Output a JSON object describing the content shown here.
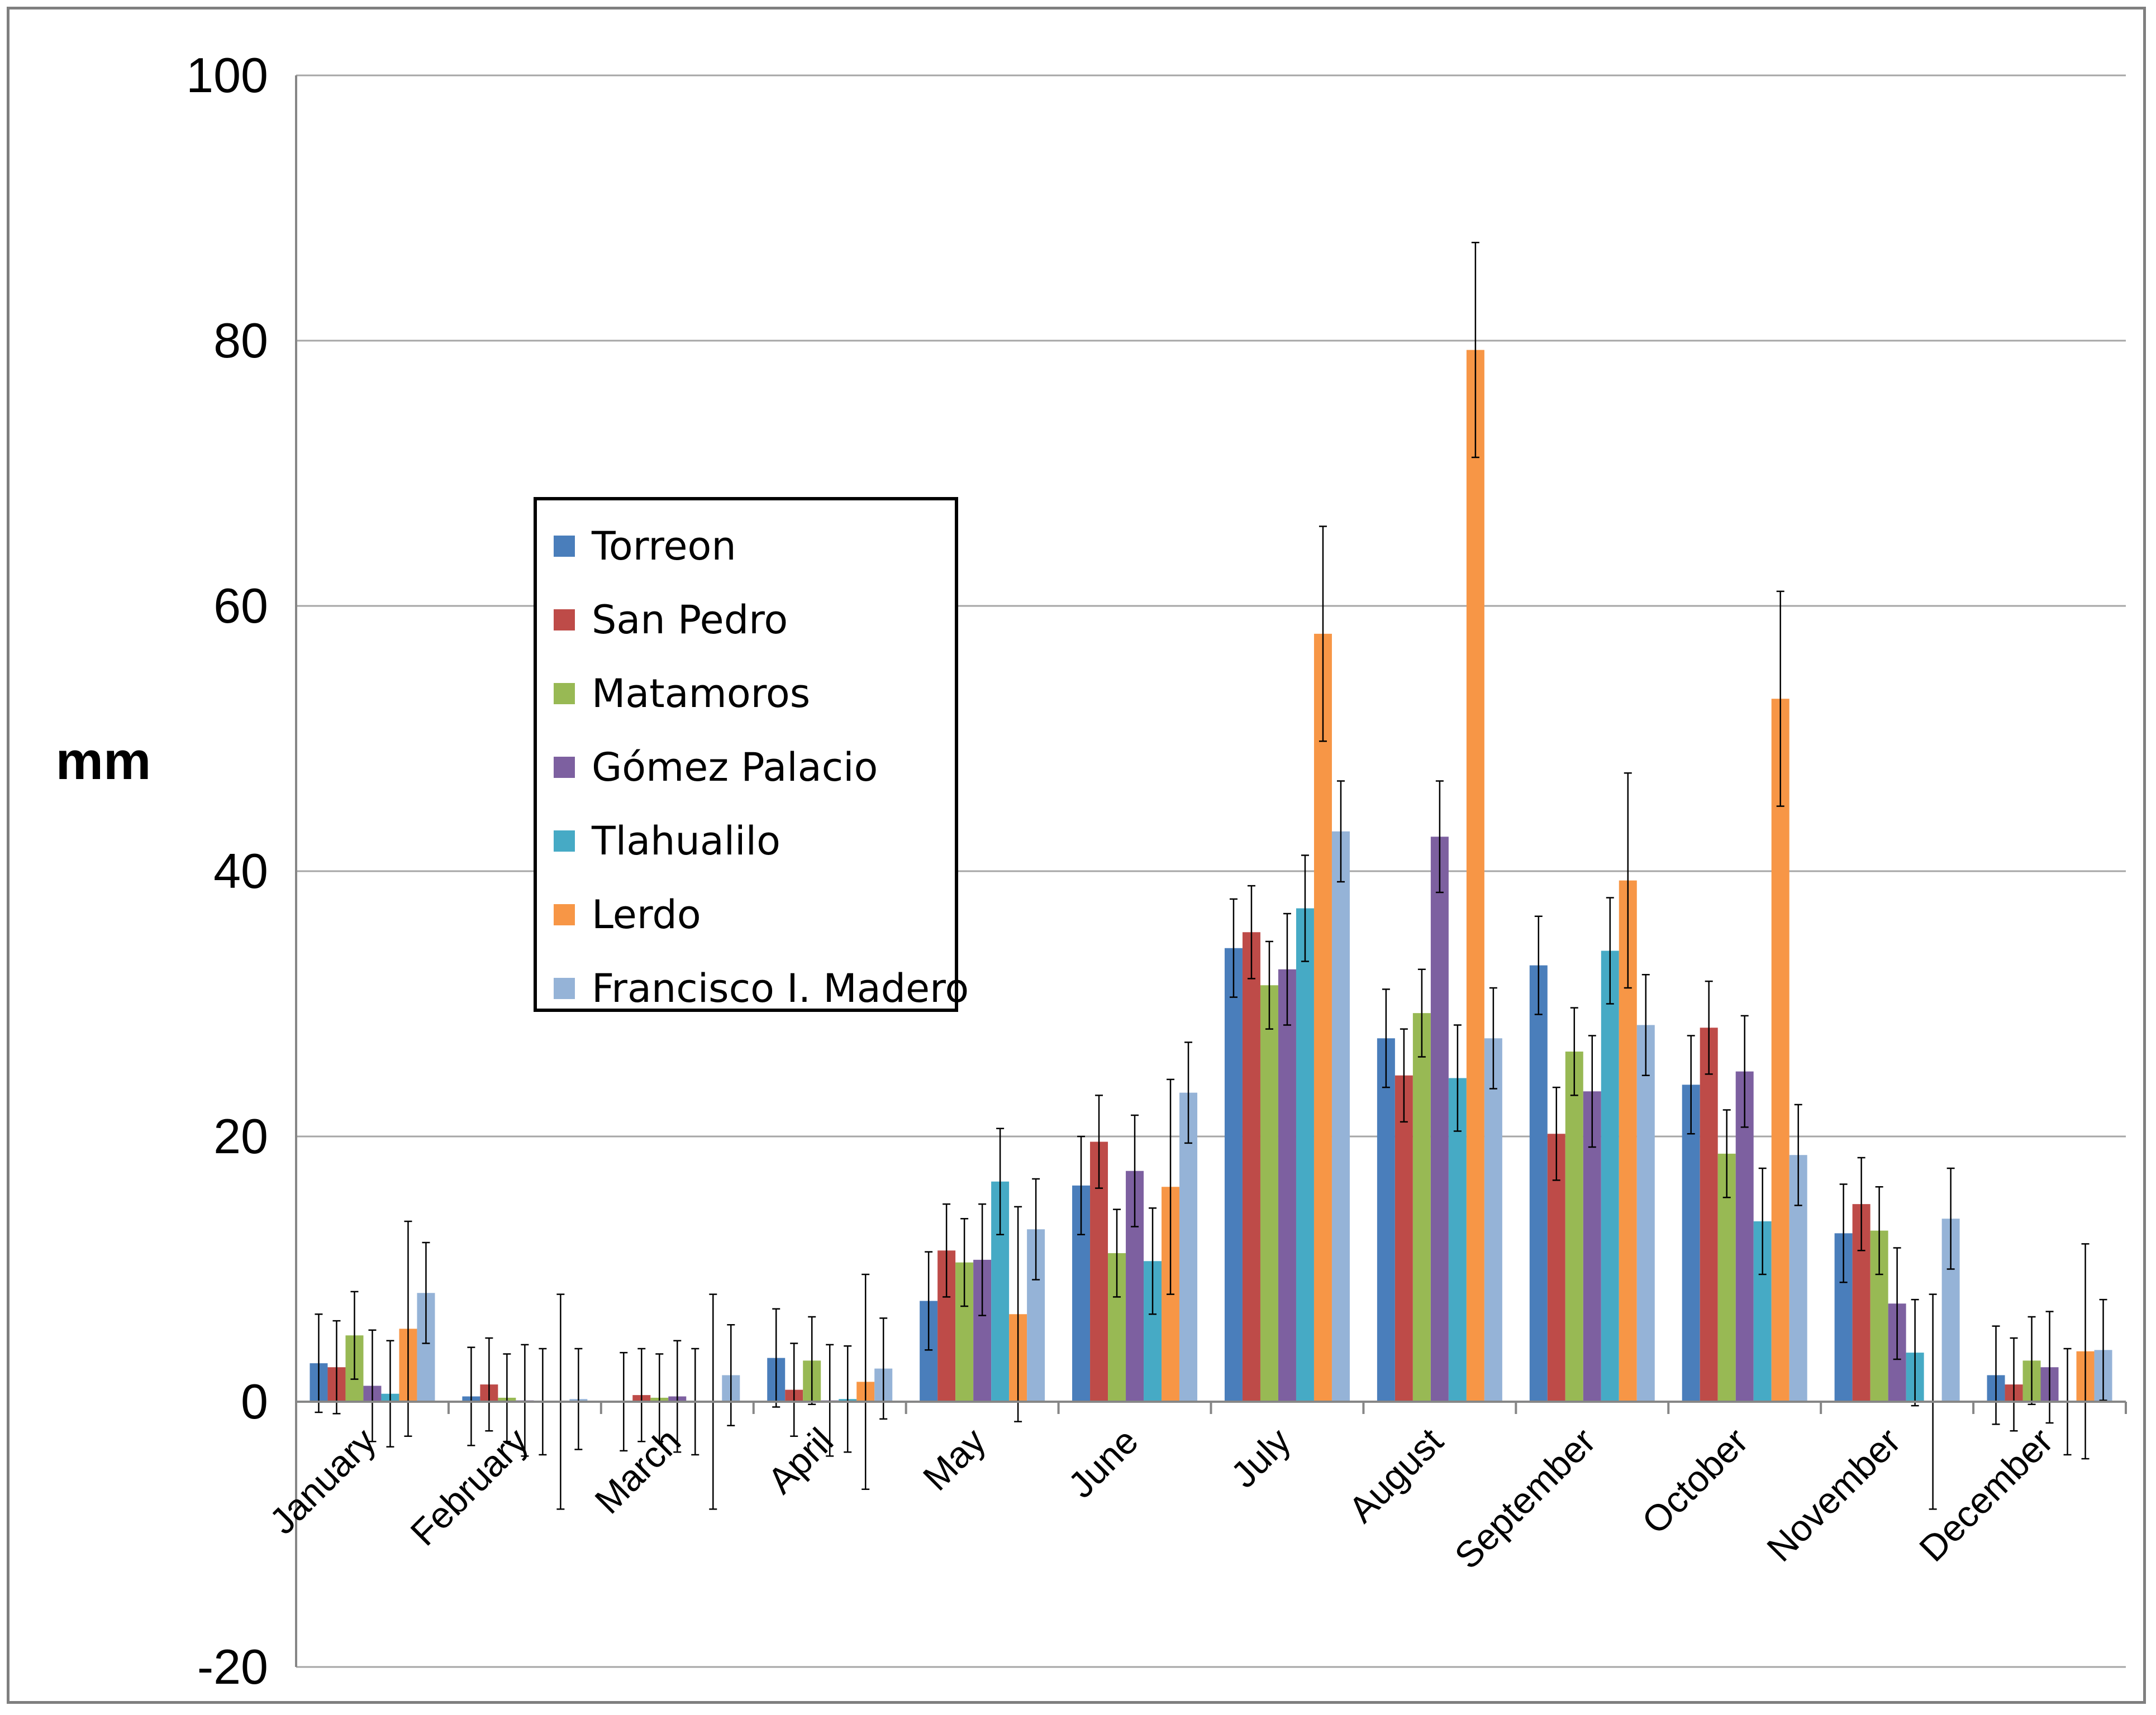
{
  "chart_data": {
    "type": "bar",
    "title": "",
    "xlabel": "",
    "ylabel": "mm",
    "ylim": [
      -20,
      100
    ],
    "yticks": [
      -20,
      0,
      20,
      40,
      60,
      80,
      100
    ],
    "grid": true,
    "legend_position": "left-center",
    "categories": [
      "January",
      "February",
      "March",
      "April",
      "May",
      "June",
      "July",
      "August",
      "September",
      "October",
      "November",
      "December"
    ],
    "series": [
      {
        "name": "Torreon",
        "color": "#4a7ebb",
        "values": [
          2.9,
          0.4,
          0.0,
          3.3,
          7.6,
          16.3,
          34.2,
          27.4,
          32.9,
          23.9,
          12.7,
          2.0
        ],
        "errors": [
          3.7,
          3.7,
          3.7,
          3.7,
          3.7,
          3.7,
          3.7,
          3.7,
          3.7,
          3.7,
          3.7,
          3.7
        ]
      },
      {
        "name": "San Pedro",
        "color": "#be4b48",
        "values": [
          2.6,
          1.3,
          0.5,
          0.9,
          11.4,
          19.6,
          35.4,
          24.6,
          20.2,
          28.2,
          14.9,
          1.3
        ],
        "errors": [
          3.5,
          3.5,
          3.5,
          3.5,
          3.5,
          3.5,
          3.5,
          3.5,
          3.5,
          3.5,
          3.5,
          3.5
        ]
      },
      {
        "name": "Matamoros",
        "color": "#98b954",
        "values": [
          5.0,
          0.3,
          0.3,
          3.1,
          10.5,
          11.2,
          31.4,
          29.3,
          26.4,
          18.7,
          12.9,
          3.1
        ],
        "errors": [
          3.3,
          3.3,
          3.3,
          3.3,
          3.3,
          3.3,
          3.3,
          3.3,
          3.3,
          3.3,
          3.3,
          3.3
        ]
      },
      {
        "name": "Gómez Palacio",
        "color": "#7d60a0",
        "values": [
          1.2,
          0.1,
          0.4,
          0.1,
          10.7,
          17.4,
          32.6,
          42.6,
          23.4,
          24.9,
          7.4,
          2.6
        ],
        "errors": [
          4.2,
          4.2,
          4.2,
          4.2,
          4.2,
          4.2,
          4.2,
          4.2,
          4.2,
          4.2,
          4.2,
          4.2
        ]
      },
      {
        "name": "Tlahualilo",
        "color": "#46aac5",
        "values": [
          0.6,
          0.0,
          0.0,
          0.2,
          16.6,
          10.6,
          37.2,
          24.4,
          34.0,
          13.6,
          3.7,
          0.0
        ],
        "errors": [
          4.0,
          4.0,
          4.0,
          4.0,
          4.0,
          4.0,
          4.0,
          4.0,
          4.0,
          4.0,
          4.0,
          4.0
        ]
      },
      {
        "name": "Lerdo",
        "color": "#f79646",
        "values": [
          5.5,
          0.0,
          0.0,
          1.5,
          6.6,
          16.2,
          57.9,
          79.3,
          39.3,
          53.0,
          0.0,
          3.8
        ],
        "errors": [
          8.1,
          8.1,
          8.1,
          8.1,
          8.1,
          8.1,
          8.1,
          8.1,
          8.1,
          8.1,
          8.1,
          8.1
        ]
      },
      {
        "name": "Francisco I. Madero",
        "color": "#95b3d7",
        "values": [
          8.2,
          0.2,
          2.0,
          2.5,
          13.0,
          23.3,
          43.0,
          27.4,
          28.4,
          18.6,
          13.8,
          3.9
        ],
        "errors": [
          3.8,
          3.8,
          3.8,
          3.8,
          3.8,
          3.8,
          3.8,
          3.8,
          3.8,
          3.8,
          3.8,
          3.8
        ]
      }
    ]
  }
}
